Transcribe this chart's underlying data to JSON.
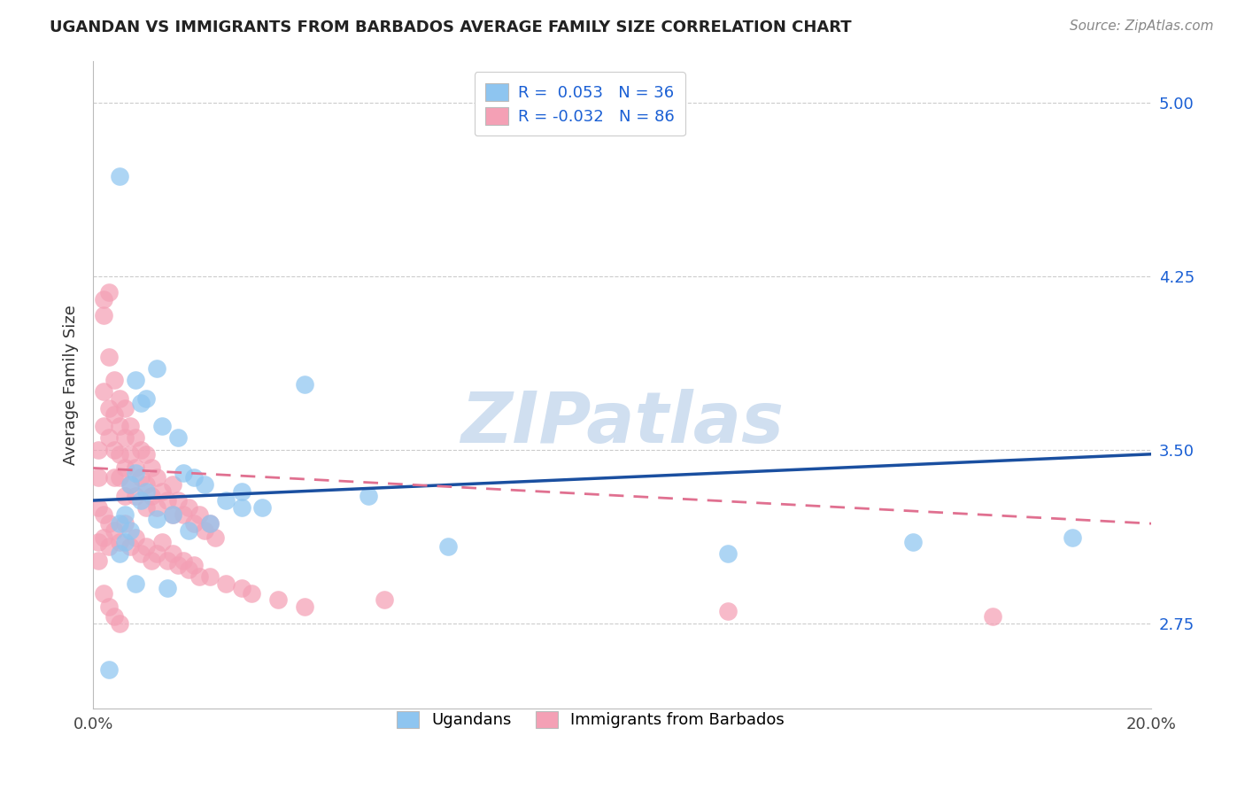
{
  "title": "UGANDAN VS IMMIGRANTS FROM BARBADOS AVERAGE FAMILY SIZE CORRELATION CHART",
  "source": "Source: ZipAtlas.com",
  "ylabel": "Average Family Size",
  "xlim": [
    0.0,
    0.2
  ],
  "ylim": [
    2.38,
    5.18
  ],
  "yticks": [
    2.75,
    3.5,
    4.25,
    5.0
  ],
  "ytick_labels": [
    "2.75",
    "3.50",
    "4.25",
    "5.00"
  ],
  "xtick_positions": [
    0.0,
    0.025,
    0.05,
    0.075,
    0.1,
    0.125,
    0.15,
    0.175,
    0.2
  ],
  "xtick_labels": [
    "0.0%",
    "",
    "",
    "",
    "",
    "",
    "",
    "",
    "20.0%"
  ],
  "ugandan_color": "#8EC5F0",
  "barbados_color": "#F4A0B5",
  "ugandan_line_color": "#1A4FA0",
  "barbados_line_color": "#E07090",
  "watermark_text": "ZIPatlas",
  "legend_text_color": "#1A5FD4",
  "ugandan_label": "Ugandans",
  "barbados_label": "Immigrants from Barbados",
  "ugandan_x": [
    0.008,
    0.009,
    0.01,
    0.012,
    0.013,
    0.016,
    0.017,
    0.019,
    0.021,
    0.025,
    0.028,
    0.032,
    0.005,
    0.006,
    0.007,
    0.008,
    0.009,
    0.01,
    0.012,
    0.015,
    0.018,
    0.022,
    0.028,
    0.04,
    0.052,
    0.005,
    0.006,
    0.007,
    0.008,
    0.014,
    0.12,
    0.155,
    0.185,
    0.005,
    0.067,
    0.003
  ],
  "ugandan_y": [
    3.8,
    3.7,
    3.72,
    3.85,
    3.6,
    3.55,
    3.4,
    3.38,
    3.35,
    3.28,
    3.32,
    3.25,
    3.18,
    3.22,
    3.35,
    3.4,
    3.28,
    3.32,
    3.2,
    3.22,
    3.15,
    3.18,
    3.25,
    3.78,
    3.3,
    3.05,
    3.1,
    3.15,
    2.92,
    2.9,
    3.05,
    3.1,
    3.12,
    4.68,
    3.08,
    2.55
  ],
  "barbados_x": [
    0.001,
    0.001,
    0.001,
    0.002,
    0.002,
    0.002,
    0.002,
    0.003,
    0.003,
    0.003,
    0.003,
    0.004,
    0.004,
    0.004,
    0.004,
    0.005,
    0.005,
    0.005,
    0.005,
    0.006,
    0.006,
    0.006,
    0.006,
    0.007,
    0.007,
    0.007,
    0.008,
    0.008,
    0.008,
    0.009,
    0.009,
    0.01,
    0.01,
    0.01,
    0.011,
    0.011,
    0.012,
    0.012,
    0.013,
    0.014,
    0.015,
    0.015,
    0.016,
    0.017,
    0.018,
    0.019,
    0.02,
    0.021,
    0.022,
    0.023,
    0.001,
    0.001,
    0.002,
    0.002,
    0.003,
    0.003,
    0.004,
    0.005,
    0.006,
    0.007,
    0.008,
    0.009,
    0.01,
    0.011,
    0.012,
    0.013,
    0.014,
    0.015,
    0.016,
    0.017,
    0.018,
    0.019,
    0.02,
    0.022,
    0.025,
    0.028,
    0.03,
    0.035,
    0.04,
    0.055,
    0.12,
    0.17,
    0.002,
    0.003,
    0.004,
    0.005
  ],
  "barbados_y": [
    3.5,
    3.38,
    3.25,
    4.15,
    4.08,
    3.75,
    3.6,
    4.18,
    3.9,
    3.68,
    3.55,
    3.8,
    3.65,
    3.5,
    3.38,
    3.72,
    3.6,
    3.48,
    3.38,
    3.68,
    3.55,
    3.42,
    3.3,
    3.6,
    3.48,
    3.35,
    3.55,
    3.42,
    3.3,
    3.5,
    3.38,
    3.48,
    3.35,
    3.25,
    3.42,
    3.3,
    3.38,
    3.25,
    3.32,
    3.28,
    3.35,
    3.22,
    3.28,
    3.22,
    3.25,
    3.18,
    3.22,
    3.15,
    3.18,
    3.12,
    3.1,
    3.02,
    3.22,
    3.12,
    3.18,
    3.08,
    3.15,
    3.1,
    3.18,
    3.08,
    3.12,
    3.05,
    3.08,
    3.02,
    3.05,
    3.1,
    3.02,
    3.05,
    3.0,
    3.02,
    2.98,
    3.0,
    2.95,
    2.95,
    2.92,
    2.9,
    2.88,
    2.85,
    2.82,
    2.85,
    2.8,
    2.78,
    2.88,
    2.82,
    2.78,
    2.75
  ],
  "ugandan_trend_x": [
    0.0,
    0.2
  ],
  "ugandan_trend_y": [
    3.28,
    3.48
  ],
  "barbados_trend_x": [
    0.0,
    0.2
  ],
  "barbados_trend_y": [
    3.42,
    3.18
  ]
}
